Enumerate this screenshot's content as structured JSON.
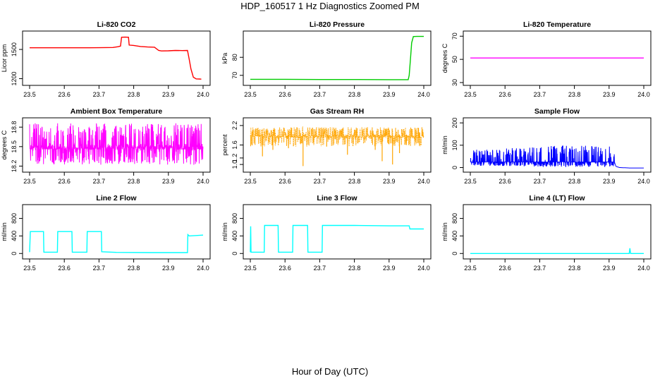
{
  "figure": {
    "title": "HDP_160517  1 Hz Diagnostics Zoomed PM",
    "xlabel": "Hour of Day (UTC)"
  },
  "chart_data": [
    {
      "id": "co2",
      "type": "line",
      "title": "Li-820 CO2",
      "xlabel": "",
      "ylabel": "Licor ppm",
      "xlim": [
        23.5,
        24.0
      ],
      "ylim": [
        1160,
        1660
      ],
      "xticks": [
        23.5,
        23.6,
        23.7,
        23.8,
        23.9,
        24.0
      ],
      "yticks": [
        1200,
        1500
      ],
      "series": [
        {
          "name": "CO2",
          "color": "#ff0000",
          "x": [
            23.5,
            23.55,
            23.6,
            23.65,
            23.7,
            23.74,
            23.755,
            23.762,
            23.765,
            23.775,
            23.785,
            23.787,
            23.8,
            23.82,
            23.84,
            23.86,
            23.872,
            23.88,
            23.9,
            23.92,
            23.94,
            23.955,
            23.96,
            23.965,
            23.972,
            23.98,
            23.99,
            23.995
          ],
          "y": [
            1517,
            1517,
            1517,
            1517,
            1518,
            1520,
            1528,
            1535,
            1625,
            1627,
            1625,
            1545,
            1541,
            1530,
            1525,
            1523,
            1490,
            1485,
            1486,
            1490,
            1488,
            1490,
            1400,
            1300,
            1215,
            1198,
            1196,
            1195
          ]
        }
      ]
    },
    {
      "id": "pressure",
      "type": "line",
      "title": "Li-820 Pressure",
      "xlabel": "",
      "ylabel": "kPa",
      "xlim": [
        23.5,
        24.0
      ],
      "ylim": [
        66,
        93
      ],
      "xticks": [
        23.5,
        23.6,
        23.7,
        23.8,
        23.9,
        24.0
      ],
      "yticks": [
        70,
        80
      ],
      "series": [
        {
          "name": "Pressure",
          "color": "#00cc00",
          "x": [
            23.5,
            23.6,
            23.7,
            23.8,
            23.9,
            23.955,
            23.958,
            23.962,
            23.965,
            23.97,
            23.98,
            23.99,
            24.0
          ],
          "y": [
            67.8,
            67.8,
            67.7,
            67.7,
            67.6,
            67.6,
            70,
            80,
            88,
            91.5,
            91.6,
            91.6,
            91.6
          ]
        }
      ]
    },
    {
      "id": "licor_temp",
      "type": "line",
      "title": "Li-820 Temperature",
      "xlabel": "",
      "ylabel": "degrees C",
      "xlim": [
        23.5,
        24.0
      ],
      "ylim": [
        30,
        72
      ],
      "xticks": [
        23.5,
        23.6,
        23.7,
        23.8,
        23.9,
        24.0
      ],
      "yticks": [
        30,
        50,
        70
      ],
      "series": [
        {
          "name": "Temperature",
          "color": "#ff00ff",
          "x": [
            23.5,
            24.0
          ],
          "y": [
            51.2,
            51.2
          ]
        }
      ]
    },
    {
      "id": "box_temp",
      "type": "line",
      "title": "Ambient Box Temperature",
      "xlabel": "",
      "ylabel": "degrees C",
      "xlim": [
        23.5,
        24.0
      ],
      "ylim": [
        18.15,
        18.9
      ],
      "xticks": [
        23.5,
        23.6,
        23.7,
        23.8,
        23.9,
        24.0
      ],
      "yticks": [
        18.2,
        18.5,
        18.8
      ],
      "series": [
        {
          "name": "Box temperature",
          "color": "#ff00ff",
          "x": [
            23.5,
            23.6,
            23.7,
            23.8,
            23.9,
            24.0
          ],
          "y": [
            18.55,
            18.55,
            18.55,
            18.55,
            18.55,
            18.55
          ],
          "y_min": [
            18.22,
            18.22,
            18.22,
            18.22,
            18.22,
            18.22
          ],
          "y_max": [
            18.86,
            18.86,
            18.86,
            18.86,
            18.86,
            18.86
          ]
        }
      ]
    },
    {
      "id": "rh",
      "type": "line",
      "title": "Gas Stream RH",
      "xlabel": "",
      "ylabel": "percent",
      "xlim": [
        23.5,
        24.0
      ],
      "ylim": [
        0.85,
        2.35
      ],
      "xticks": [
        23.5,
        23.6,
        23.7,
        23.8,
        23.9,
        24.0
      ],
      "yticks": [
        1.0,
        1.2,
        1.6,
        2.2
      ],
      "series": [
        {
          "name": "RH",
          "color": "#ffa500",
          "x": [
            23.5,
            23.6,
            23.7,
            23.8,
            23.9,
            24.0
          ],
          "y": [
            1.92,
            1.92,
            1.92,
            1.92,
            1.92,
            1.92
          ],
          "y_min": [
            1.55,
            1.55,
            1.55,
            1.55,
            1.55,
            1.55
          ],
          "y_max": [
            2.15,
            2.15,
            2.15,
            2.15,
            2.15,
            2.15
          ],
          "dips": [
            {
              "x": 23.535,
              "y": 1.25
            },
            {
              "x": 23.565,
              "y": 1.45
            },
            {
              "x": 23.61,
              "y": 1.5
            },
            {
              "x": 23.652,
              "y": 0.95
            },
            {
              "x": 23.72,
              "y": 1.55
            },
            {
              "x": 23.78,
              "y": 1.3
            },
            {
              "x": 23.86,
              "y": 1.45
            },
            {
              "x": 23.88,
              "y": 1.1
            },
            {
              "x": 23.91,
              "y": 1.0
            },
            {
              "x": 23.93,
              "y": 1.35
            },
            {
              "x": 23.95,
              "y": 1.6
            }
          ]
        }
      ]
    },
    {
      "id": "sample_flow",
      "type": "line",
      "title": "Sample Flow",
      "xlabel": "",
      "ylabel": "ml/min",
      "xlim": [
        23.5,
        24.0
      ],
      "ylim": [
        -8,
        210
      ],
      "xticks": [
        23.5,
        23.6,
        23.7,
        23.8,
        23.9,
        24.0
      ],
      "yticks": [
        0,
        100,
        200
      ],
      "series": [
        {
          "name": "Sample flow",
          "color": "#0000ff",
          "x": [
            23.5,
            23.6,
            23.7,
            23.8,
            23.9,
            23.915,
            23.92,
            23.93,
            23.96,
            24.0
          ],
          "y": [
            25,
            25,
            25,
            25,
            25,
            25,
            5,
            0,
            -2,
            -2
          ],
          "y_max": [
            80,
            85,
            95,
            100,
            95,
            90,
            null,
            null,
            null,
            null
          ]
        }
      ]
    },
    {
      "id": "line2",
      "type": "line",
      "title": "Line 2 Flow",
      "xlabel": "",
      "ylabel": "ml/min",
      "xlim": [
        23.5,
        24.0
      ],
      "ylim": [
        -60,
        1050
      ],
      "xticks": [
        23.5,
        23.6,
        23.7,
        23.8,
        23.9,
        24.0
      ],
      "yticks": [
        0,
        400,
        800
      ],
      "series": [
        {
          "name": "Line 2",
          "color": "#00ffff",
          "x": [
            23.5,
            23.502,
            23.54,
            23.541,
            23.58,
            23.581,
            23.622,
            23.623,
            23.665,
            23.666,
            23.707,
            23.708,
            23.75,
            23.85,
            23.955,
            23.956,
            23.96,
            24.0
          ],
          "y": [
            30,
            500,
            500,
            30,
            30,
            500,
            500,
            30,
            30,
            500,
            500,
            40,
            25,
            20,
            20,
            430,
            400,
            420
          ]
        }
      ]
    },
    {
      "id": "line3",
      "type": "line",
      "title": "Line 3 Flow",
      "xlabel": "",
      "ylabel": "ml/min",
      "xlim": [
        23.5,
        24.0
      ],
      "ylim": [
        -60,
        1050
      ],
      "xticks": [
        23.5,
        23.6,
        23.7,
        23.8,
        23.9,
        24.0
      ],
      "yticks": [
        0,
        400,
        800
      ],
      "series": [
        {
          "name": "Line 3",
          "color": "#00ffff",
          "x": [
            23.5,
            23.501,
            23.502,
            23.54,
            23.541,
            23.58,
            23.581,
            23.622,
            23.623,
            23.665,
            23.666,
            23.707,
            23.708,
            23.8,
            23.9,
            23.958,
            23.96,
            24.0
          ],
          "y": [
            30,
            620,
            30,
            30,
            640,
            640,
            30,
            30,
            640,
            640,
            30,
            30,
            640,
            640,
            630,
            630,
            560,
            560
          ]
        }
      ]
    },
    {
      "id": "line4",
      "type": "line",
      "title": "Line 4 (LT) Flow",
      "xlabel": "",
      "ylabel": "ml/min",
      "xlim": [
        23.5,
        24.0
      ],
      "ylim": [
        -60,
        1050
      ],
      "xticks": [
        23.5,
        23.6,
        23.7,
        23.8,
        23.9,
        24.0
      ],
      "yticks": [
        0,
        400,
        800
      ],
      "series": [
        {
          "name": "Line 4",
          "color": "#00ffff",
          "x": [
            23.5,
            23.6,
            23.7,
            23.8,
            23.9,
            23.958,
            23.96,
            23.962,
            24.0
          ],
          "y": [
            0,
            0,
            0,
            0,
            0,
            0,
            120,
            0,
            0
          ]
        }
      ]
    }
  ]
}
